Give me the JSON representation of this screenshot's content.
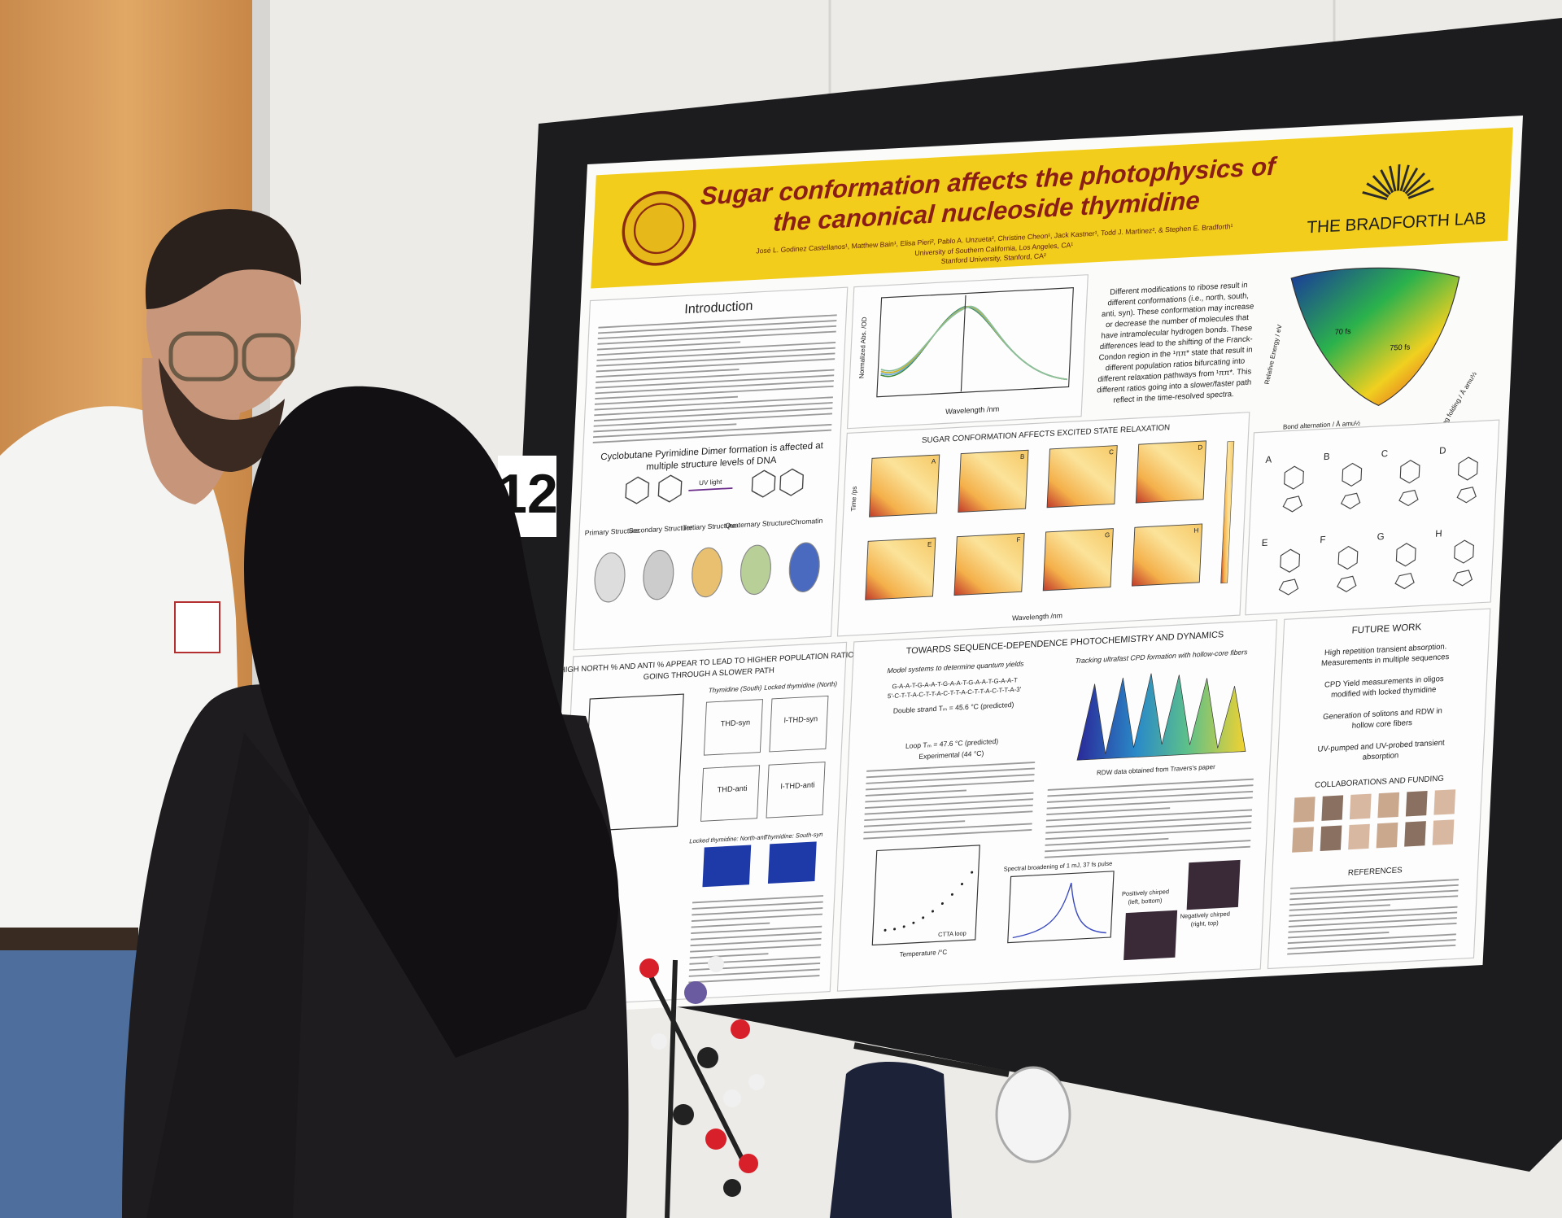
{
  "board_number": "12",
  "poster": {
    "title_lines": [
      "Sugar conformation affects the photophysics of",
      "the canonical nucleoside thymidine"
    ],
    "authors": "José L. Godinez Castellanos¹, Matthew Bain¹, Elisa Pieri², Pablo A. Unzueta², Christine Cheon¹, Jack Kastner¹, Todd J. Martinez², & Stephen E. Bradforth¹",
    "affiliations": [
      "University of Southern California, Los Angeles, CA¹",
      "Stanford University, Stanford, CA²"
    ],
    "lab": "THE BRADFORTH LAB",
    "introduction": {
      "heading": "Introduction",
      "subheading_lines": [
        "Cyclobutane Pyrimidine Dimer formation is affected at",
        "multiple structure levels of DNA"
      ],
      "reaction_label": "UV light",
      "structures": [
        "Primary Structure",
        "Secondary Structure",
        "Tertiary Structure",
        "Quaternary Structure",
        "Chromatin"
      ]
    },
    "spectrum": {
      "x_label": "Wavelength /nm",
      "y_label": "Normalized Abs. /OD"
    },
    "conformation_text": [
      "Different modifications to ribose result in",
      "different conformations (i.e., north, south,",
      "anti, syn). These conformation may increase",
      "or decrease the number of molecules that",
      "have intramolecular hydrogen bonds. These",
      "differences lead to the shifting of the Franck-",
      "Condon region in the ¹ππ* state that result in",
      "different population ratios bifurcating into",
      "different relaxation pathways from ¹ππ*. This",
      "different ratios going into a slower/faster path",
      "reflect in the time-resolved spectra."
    ],
    "surface": {
      "x_label": "Bond alternation / Å amu½",
      "y_label": "Relative Energy / eV",
      "z_label": "Ring folding / Å amu½",
      "fast_label": "70 fs",
      "slow_label": "750 fs"
    },
    "relaxation": {
      "heading": "SUGAR CONFORMATION AFFECTS EXCITED STATE RELAXATION",
      "panels": [
        "A",
        "B",
        "C",
        "D",
        "E",
        "F",
        "G",
        "H"
      ],
      "x_label": "Wavelength /nm",
      "y_label": "Time /ps"
    },
    "structure_labels": [
      "A",
      "B",
      "C",
      "D",
      "E",
      "F",
      "G",
      "H"
    ],
    "population": {
      "heading_lines": [
        "HIGH NORTH % AND ANTI % APPEAR TO LEAD TO HIGHER POPULATION RATIOS",
        "GOING THROUGH A SLOWER PATH"
      ],
      "columns": [
        "Thymidine (South)",
        "Locked thymidine (North)"
      ],
      "traces": [
        "THD-syn",
        "l-THD-syn",
        "THD-anti",
        "l-THD-anti"
      ],
      "images": [
        "Locked thymidine: North-anti",
        "Thymidine: South-syn"
      ]
    },
    "sequence": {
      "heading": "TOWARDS SEQUENCE-DEPENDENCE PHOTOCHEMISTRY AND DYNAMICS",
      "left_heading": "Model systems to determine quantum yields",
      "right_heading": "Tracking ultrafast CPD formation with hollow-core fibers",
      "strands": [
        "G-A-A-T-G-A-A-T-G-A-A-T-G-A-A-T-G-A-A-T",
        "5'-C-T-T-A-C-T-T-A-C-T-T-A-C-T-T-A-C-T-T-A-3'"
      ],
      "double_strand": "Double strand Tₘ = 45.6 °C (predicted)",
      "loop": "Loop Tₘ = 47.6 °C (predicted)",
      "experimental": "Experimental (44 °C)",
      "rdw_caption": "RDW data obtained from Travers's paper",
      "melt_legend": "CTTA loop",
      "melt_x_label": "Temperature /°C",
      "broadening_title": "Spectral broadening of 1 mJ, 37 fs pulse",
      "positive": [
        "Positively chirped",
        "(left, bottom)"
      ],
      "negative": [
        "Negatively chirped",
        "(right, top)"
      ]
    },
    "future_work": {
      "heading": "FUTURE WORK",
      "items": [
        [
          "High repetition transient absorption.",
          "Measurements in multiple sequences"
        ],
        [
          "CPD Yield measurements in oligos",
          "modified with locked thymidine"
        ],
        [
          "Generation of solitons and RDW in",
          "hollow core fibers"
        ],
        [
          "UV-pumped and UV-probed transient",
          "absorption"
        ]
      ]
    },
    "collaborations": "COLLABORATIONS AND FUNDING",
    "references": "REFERENCES"
  }
}
